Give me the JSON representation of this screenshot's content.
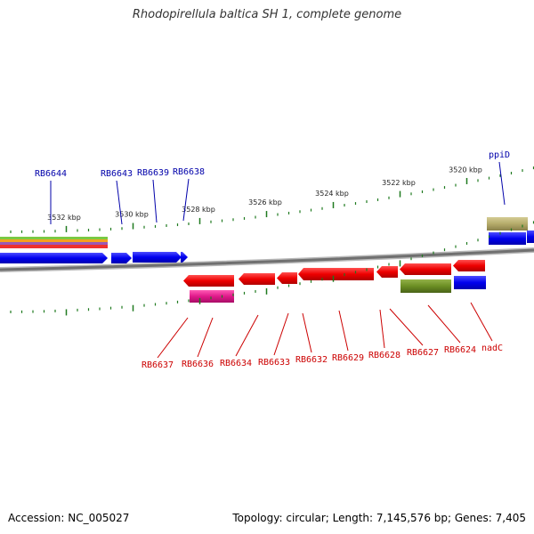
{
  "title": "Rhodopirellula baltica SH 1, complete genome",
  "footer": {
    "accession": "Accession: NC_005027",
    "summary": "Topology: circular; Length: 7,145,576 bp; Genes: 7,405"
  },
  "colors": {
    "forward_gene": "#0000ee",
    "reverse_gene": "#ee0000",
    "forward_label": "#0000aa",
    "reverse_label": "#cc0000",
    "backbone": "#808080",
    "tick": "#1f7a1f",
    "pink_feature": "#e0198a",
    "olive_feature": "#6b8e23",
    "khaki_feature": "#b5ab6a"
  },
  "kbp_ticks": [
    "3532 kbp",
    "3530 kbp",
    "3528 kbp",
    "3526 kbp",
    "3524 kbp",
    "3522 kbp",
    "3520 kbp"
  ],
  "forward_genes": [
    "RB6644",
    "RB6643",
    "RB6639",
    "RB6638",
    "ppiD"
  ],
  "reverse_genes": [
    "RB6637",
    "RB6636",
    "RB6634",
    "RB6633",
    "RB6632",
    "RB6629",
    "RB6628",
    "RB6627",
    "RB6624",
    "nadC"
  ]
}
